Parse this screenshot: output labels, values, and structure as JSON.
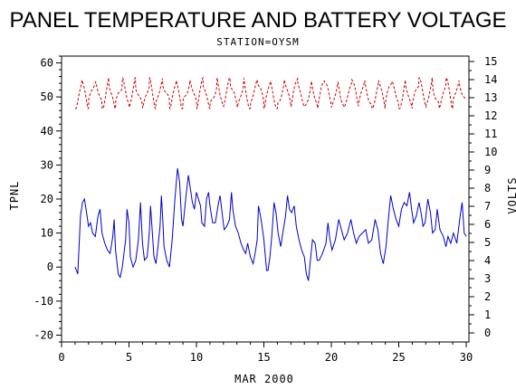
{
  "chart_data": {
    "type": "line",
    "title": "PANEL TEMPERATURE AND BATTERY VOLTAGE",
    "subtitle": "STATION=OYSM",
    "xlabel": "MAR 2000",
    "ylabel": "TPNL",
    "y2label": "VOLTS",
    "xlim": [
      0,
      30.2
    ],
    "ylim": [
      -22,
      62
    ],
    "y2lim": [
      -0.5,
      15.3
    ],
    "x_ticks": [
      0,
      5,
      10,
      15,
      20,
      25,
      30
    ],
    "y_ticks": [
      -20,
      -10,
      0,
      10,
      20,
      30,
      40,
      50,
      60
    ],
    "y2_ticks": [
      0,
      1,
      2,
      3,
      4,
      5,
      6,
      7,
      8,
      9,
      10,
      11,
      12,
      13,
      14,
      15
    ],
    "grid": false,
    "legend": "none",
    "series": [
      {
        "axis": "left",
        "color": "#0000cc",
        "points": [
          [
            1.0,
            0
          ],
          [
            1.1,
            -1
          ],
          [
            1.2,
            -2
          ],
          [
            1.4,
            15
          ],
          [
            1.55,
            19
          ],
          [
            1.7,
            20
          ],
          [
            1.85,
            16
          ],
          [
            2.0,
            12
          ],
          [
            2.15,
            13
          ],
          [
            2.3,
            10
          ],
          [
            2.5,
            9
          ],
          [
            2.7,
            15
          ],
          [
            2.85,
            17
          ],
          [
            3.0,
            10
          ],
          [
            3.2,
            7
          ],
          [
            3.4,
            5
          ],
          [
            3.6,
            4
          ],
          [
            3.8,
            9
          ],
          [
            3.9,
            14
          ],
          [
            4.0,
            5
          ],
          [
            4.2,
            -2
          ],
          [
            4.35,
            -3
          ],
          [
            4.5,
            0
          ],
          [
            4.75,
            8
          ],
          [
            4.85,
            17
          ],
          [
            5.0,
            13
          ],
          [
            5.1,
            3
          ],
          [
            5.3,
            0
          ],
          [
            5.5,
            2
          ],
          [
            5.7,
            8
          ],
          [
            5.85,
            19
          ],
          [
            6.0,
            7
          ],
          [
            6.15,
            2
          ],
          [
            6.35,
            3
          ],
          [
            6.5,
            10
          ],
          [
            6.6,
            18
          ],
          [
            6.7,
            12
          ],
          [
            6.85,
            3
          ],
          [
            7.0,
            1
          ],
          [
            7.15,
            6
          ],
          [
            7.3,
            12
          ],
          [
            7.4,
            21
          ],
          [
            7.5,
            14
          ],
          [
            7.6,
            6
          ],
          [
            7.8,
            2
          ],
          [
            8.0,
            0
          ],
          [
            8.2,
            8
          ],
          [
            8.4,
            20
          ],
          [
            8.6,
            29
          ],
          [
            8.75,
            25
          ],
          [
            8.9,
            14
          ],
          [
            9.0,
            12
          ],
          [
            9.2,
            20
          ],
          [
            9.4,
            27
          ],
          [
            9.55,
            23
          ],
          [
            9.7,
            19
          ],
          [
            9.85,
            17
          ],
          [
            10.0,
            22
          ],
          [
            10.15,
            20
          ],
          [
            10.3,
            18
          ],
          [
            10.4,
            13
          ],
          [
            10.6,
            12
          ],
          [
            10.75,
            20
          ],
          [
            10.9,
            22
          ],
          [
            11.0,
            18
          ],
          [
            11.2,
            13
          ],
          [
            11.4,
            13
          ],
          [
            11.6,
            18
          ],
          [
            11.75,
            21
          ],
          [
            11.9,
            16
          ],
          [
            12.05,
            11
          ],
          [
            12.25,
            12
          ],
          [
            12.45,
            14
          ],
          [
            12.6,
            22
          ],
          [
            12.7,
            17
          ],
          [
            12.9,
            12
          ],
          [
            13.1,
            10
          ],
          [
            13.3,
            7
          ],
          [
            13.5,
            5
          ],
          [
            13.65,
            4
          ],
          [
            13.8,
            7
          ],
          [
            14.0,
            3
          ],
          [
            14.2,
            1
          ],
          [
            14.35,
            4
          ],
          [
            14.5,
            8
          ],
          [
            14.6,
            18
          ],
          [
            14.75,
            15
          ],
          [
            14.9,
            11
          ],
          [
            15.0,
            8
          ],
          [
            15.2,
            -1
          ],
          [
            15.3,
            -1
          ],
          [
            15.45,
            3
          ],
          [
            15.6,
            10
          ],
          [
            15.75,
            19
          ],
          [
            15.9,
            16
          ],
          [
            16.05,
            10
          ],
          [
            16.25,
            6
          ],
          [
            16.4,
            10
          ],
          [
            16.6,
            15
          ],
          [
            16.75,
            21
          ],
          [
            16.9,
            17
          ],
          [
            17.05,
            16
          ],
          [
            17.25,
            18
          ],
          [
            17.4,
            12
          ],
          [
            17.6,
            8
          ],
          [
            17.8,
            5
          ],
          [
            18.0,
            3
          ],
          [
            18.15,
            -2
          ],
          [
            18.3,
            -4
          ],
          [
            18.45,
            2
          ],
          [
            18.6,
            8
          ],
          [
            18.8,
            7
          ],
          [
            18.95,
            2
          ],
          [
            19.1,
            2
          ],
          [
            19.35,
            4
          ],
          [
            19.6,
            7
          ],
          [
            19.75,
            13
          ],
          [
            19.9,
            8
          ],
          [
            20.05,
            5
          ],
          [
            20.3,
            8
          ],
          [
            20.55,
            14
          ],
          [
            20.75,
            11
          ],
          [
            20.95,
            8
          ],
          [
            21.2,
            10
          ],
          [
            21.45,
            14
          ],
          [
            21.65,
            10
          ],
          [
            21.85,
            7
          ],
          [
            22.05,
            9
          ],
          [
            22.3,
            10
          ],
          [
            22.55,
            11
          ],
          [
            22.75,
            7
          ],
          [
            23.0,
            8
          ],
          [
            23.25,
            14
          ],
          [
            23.45,
            11
          ],
          [
            23.65,
            4
          ],
          [
            23.85,
            1
          ],
          [
            24.05,
            6
          ],
          [
            24.25,
            15
          ],
          [
            24.4,
            21
          ],
          [
            24.6,
            17
          ],
          [
            24.8,
            14
          ],
          [
            25.0,
            12
          ],
          [
            25.2,
            17
          ],
          [
            25.4,
            19
          ],
          [
            25.6,
            18
          ],
          [
            25.8,
            22
          ],
          [
            25.95,
            17
          ],
          [
            26.1,
            13
          ],
          [
            26.3,
            15
          ],
          [
            26.5,
            19
          ],
          [
            26.65,
            16
          ],
          [
            26.8,
            12
          ],
          [
            26.95,
            13
          ],
          [
            27.15,
            20
          ],
          [
            27.35,
            16
          ],
          [
            27.5,
            10
          ],
          [
            27.7,
            11
          ],
          [
            27.85,
            17
          ],
          [
            28.05,
            11
          ],
          [
            28.3,
            9
          ],
          [
            28.5,
            6
          ],
          [
            28.65,
            9
          ],
          [
            28.85,
            7
          ],
          [
            29.05,
            10
          ],
          [
            29.3,
            7
          ],
          [
            29.55,
            15
          ],
          [
            29.7,
            19
          ],
          [
            29.85,
            10
          ],
          [
            30.0,
            9
          ]
        ]
      },
      {
        "axis": "right",
        "color": "#cc0000",
        "dashed": true,
        "amplitude_volts": [
          12.5,
          13.9
        ],
        "x_range": [
          1.0,
          30.0
        ],
        "cycles_per_day": 1
      }
    ]
  }
}
